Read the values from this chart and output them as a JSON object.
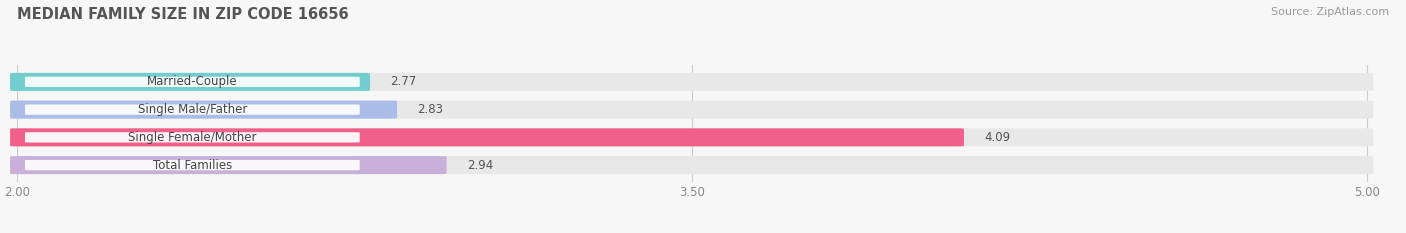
{
  "title": "MEDIAN FAMILY SIZE IN ZIP CODE 16656",
  "source": "Source: ZipAtlas.com",
  "categories": [
    "Married-Couple",
    "Single Male/Father",
    "Single Female/Mother",
    "Total Families"
  ],
  "values": [
    2.77,
    2.83,
    4.09,
    2.94
  ],
  "bar_colors": [
    "#72cece",
    "#aabde8",
    "#f0608a",
    "#c9b0d8"
  ],
  "xmin": 2.0,
  "xmax": 5.0,
  "xticks": [
    2.0,
    3.5,
    5.0
  ],
  "bar_height": 0.62,
  "background_color": "#f7f7f7",
  "bar_background_color": "#e8e8e8",
  "title_fontsize": 10.5,
  "label_fontsize": 8.5,
  "value_fontsize": 8.5,
  "source_fontsize": 8,
  "title_color": "#555555",
  "label_color": "#444444",
  "value_color": "#555555",
  "source_color": "#999999",
  "tick_color": "#888888",
  "grid_color": "#cccccc"
}
